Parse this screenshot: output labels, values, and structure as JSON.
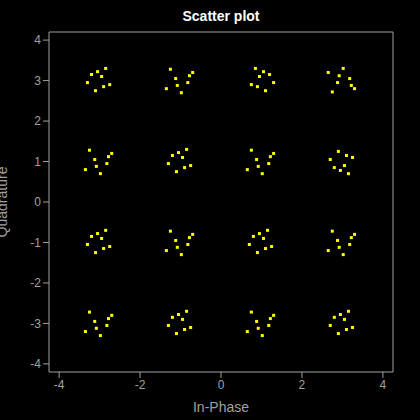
{
  "chart_data": {
    "type": "scatter",
    "title": "Scatter plot",
    "x_label": "In-Phase",
    "y_label": "Quadrature",
    "color": "#ffff00",
    "marker": "square",
    "xlim": [
      -4.25,
      4.25
    ],
    "ylim": [
      -4.2,
      4.2
    ],
    "xticks": [
      -4,
      -2,
      0,
      2,
      4
    ],
    "yticks": [
      -4,
      -3,
      -2,
      -1,
      0,
      1,
      2,
      3,
      4
    ],
    "x": [
      -2.95,
      -3.2,
      -2.75,
      -3.1,
      -2.85,
      -3.3,
      -2.9,
      -3.05,
      -1.12,
      -0.7,
      -0.98,
      -1.25,
      -0.82,
      -1.08,
      -0.78,
      -1.35,
      0.95,
      1.2,
      0.75,
      1.1,
      0.85,
      1.3,
      0.9,
      1.05,
      2.88,
      3.3,
      3.02,
      2.75,
      3.18,
      2.92,
      3.22,
      2.65,
      -3.12,
      -2.7,
      -2.98,
      -3.25,
      -2.82,
      -3.08,
      -2.78,
      -3.35,
      -0.95,
      -1.2,
      -0.75,
      -1.1,
      -0.85,
      -1.3,
      -0.9,
      -1.05,
      0.88,
      1.3,
      1.02,
      0.75,
      1.18,
      0.92,
      1.22,
      0.65,
      3.05,
      2.8,
      3.25,
      2.9,
      3.15,
      2.7,
      3.1,
      2.95,
      -2.95,
      -3.2,
      -2.75,
      -3.1,
      -2.85,
      -3.3,
      -2.9,
      -3.05,
      -1.12,
      -0.7,
      -0.98,
      -1.25,
      -0.82,
      -1.08,
      -0.78,
      -1.35,
      1.05,
      0.8,
      1.25,
      0.9,
      1.15,
      0.7,
      1.1,
      0.95,
      2.88,
      3.3,
      3.02,
      2.75,
      3.18,
      2.92,
      3.22,
      2.65,
      -3.12,
      -2.7,
      -2.98,
      -3.25,
      -2.82,
      -3.08,
      -2.78,
      -3.35,
      -0.95,
      -1.2,
      -0.75,
      -1.1,
      -0.85,
      -1.3,
      -0.9,
      -1.05,
      0.88,
      1.3,
      1.02,
      0.75,
      1.18,
      0.92,
      1.22,
      0.65,
      3.05,
      2.8,
      3.25,
      2.9,
      3.15,
      2.7,
      3.1,
      2.95
    ],
    "values": [
      3.1,
      3.15,
      2.9,
      2.75,
      3.3,
      2.95,
      2.85,
      3.22,
      3.05,
      3.2,
      2.7,
      3.28,
      2.95,
      2.88,
      3.12,
      2.8,
      3.1,
      3.15,
      2.9,
      2.75,
      3.3,
      2.95,
      2.85,
      3.22,
      2.95,
      2.8,
      3.3,
      2.72,
      3.05,
      3.12,
      2.88,
      3.2,
      1.05,
      1.2,
      0.7,
      1.28,
      0.95,
      0.88,
      1.12,
      0.8,
      1.1,
      1.15,
      0.9,
      0.75,
      1.3,
      0.95,
      0.85,
      1.22,
      1.05,
      1.2,
      0.7,
      1.28,
      0.95,
      0.88,
      1.12,
      0.8,
      0.9,
      0.85,
      1.1,
      1.25,
      0.7,
      1.05,
      1.15,
      0.78,
      -0.9,
      -0.85,
      -1.1,
      -1.25,
      -0.7,
      -1.05,
      -1.15,
      -0.78,
      -0.95,
      -0.8,
      -1.3,
      -0.72,
      -1.05,
      -1.12,
      -0.88,
      -1.2,
      -0.9,
      -0.85,
      -1.1,
      -1.25,
      -0.7,
      -1.05,
      -1.15,
      -0.78,
      -0.95,
      -0.8,
      -1.3,
      -0.72,
      -1.05,
      -1.12,
      -0.88,
      -1.2,
      -2.95,
      -2.8,
      -3.3,
      -2.72,
      -3.05,
      -3.12,
      -2.88,
      -3.2,
      -2.9,
      -2.85,
      -3.1,
      -3.25,
      -2.7,
      -3.05,
      -3.15,
      -2.78,
      -2.95,
      -2.8,
      -3.3,
      -2.72,
      -3.05,
      -3.12,
      -2.88,
      -3.2,
      -2.9,
      -2.85,
      -3.1,
      -3.25,
      -2.7,
      -3.05,
      -3.15,
      -2.78
    ]
  }
}
